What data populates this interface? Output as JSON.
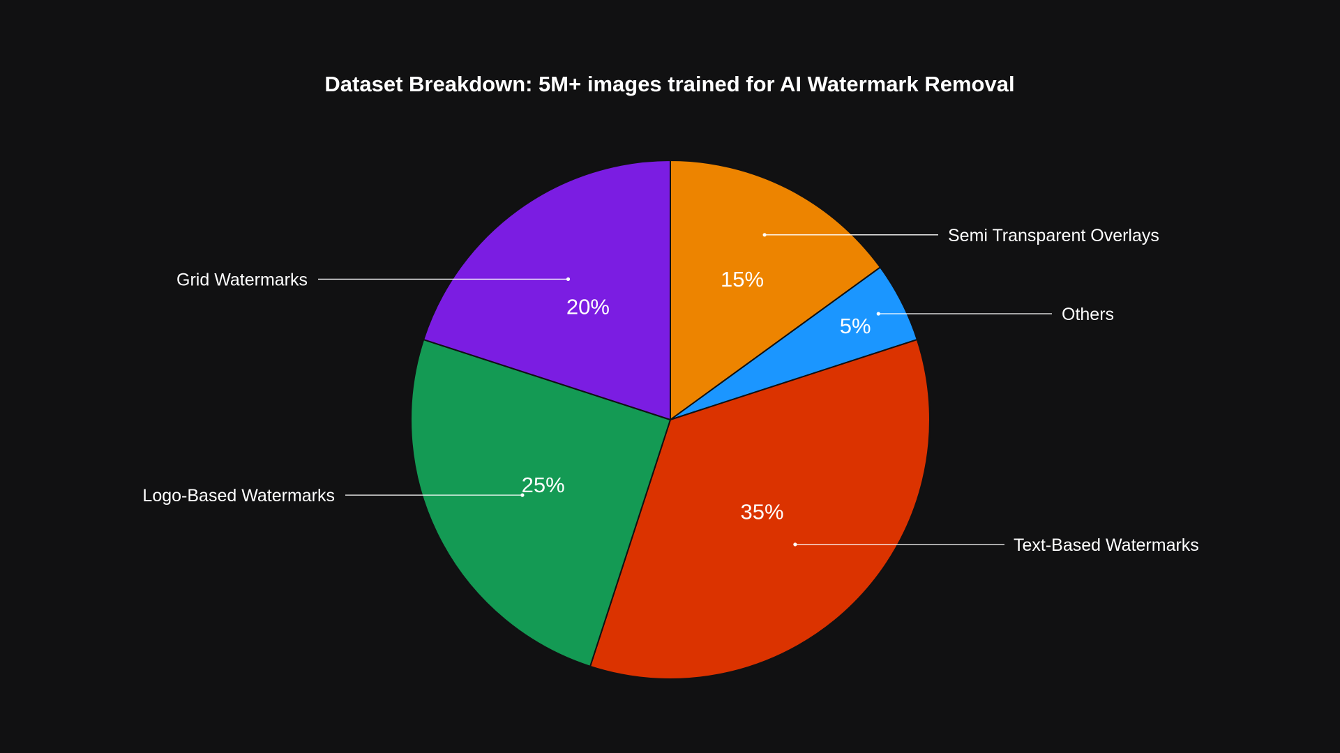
{
  "chart_data": {
    "type": "pie",
    "title": "Dataset Breakdown: 5M+ images trained for AI Watermark Removal",
    "start_angle_deg": 0,
    "direction": "clockwise",
    "background": "#111112",
    "slices": [
      {
        "label": "Semi Transparent Overlays",
        "value": 15,
        "value_label": "15%",
        "color": "#ED8400"
      },
      {
        "label": "Others",
        "value": 5,
        "value_label": "5%",
        "color": "#1B96FF"
      },
      {
        "label": "Text-Based Watermarks",
        "value": 35,
        "value_label": "35%",
        "color": "#DB3300"
      },
      {
        "label": "Logo-Based Watermarks",
        "value": 25,
        "value_label": "25%",
        "color": "#149A54"
      },
      {
        "label": "Grid Watermarks",
        "value": 20,
        "value_label": "20%",
        "color": "#7B1DE2"
      }
    ]
  }
}
